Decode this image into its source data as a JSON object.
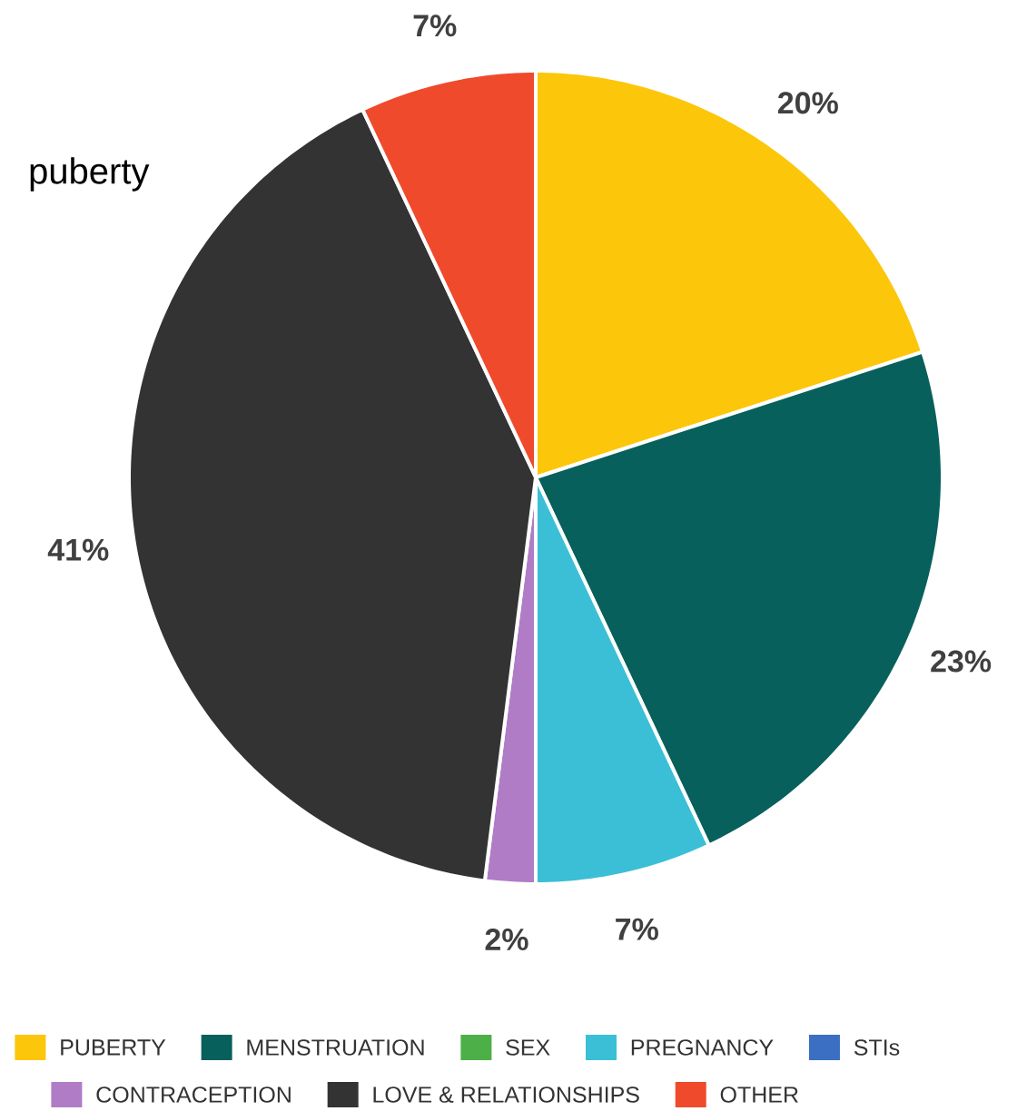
{
  "chart_data": {
    "type": "pie",
    "title": "puberty",
    "categories": [
      "PUBERTY",
      "MENSTRUATION",
      "SEX",
      "PREGNANCY",
      "STIs",
      "CONTRACEPTION",
      "LOVE & RELATIONSHIPS",
      "OTHER"
    ],
    "values": [
      20,
      23,
      0,
      7,
      0,
      2,
      41,
      7
    ],
    "value_labels": [
      "20%",
      "23%",
      null,
      "7%",
      null,
      "2%",
      "41%",
      "7%"
    ],
    "colors": [
      "#fcc60a",
      "#07605c",
      "#4caf48",
      "#3bbfd6",
      "#3a6fc4",
      "#b07cc6",
      "#333333",
      "#ef4a2c"
    ],
    "legend": "bottom"
  }
}
